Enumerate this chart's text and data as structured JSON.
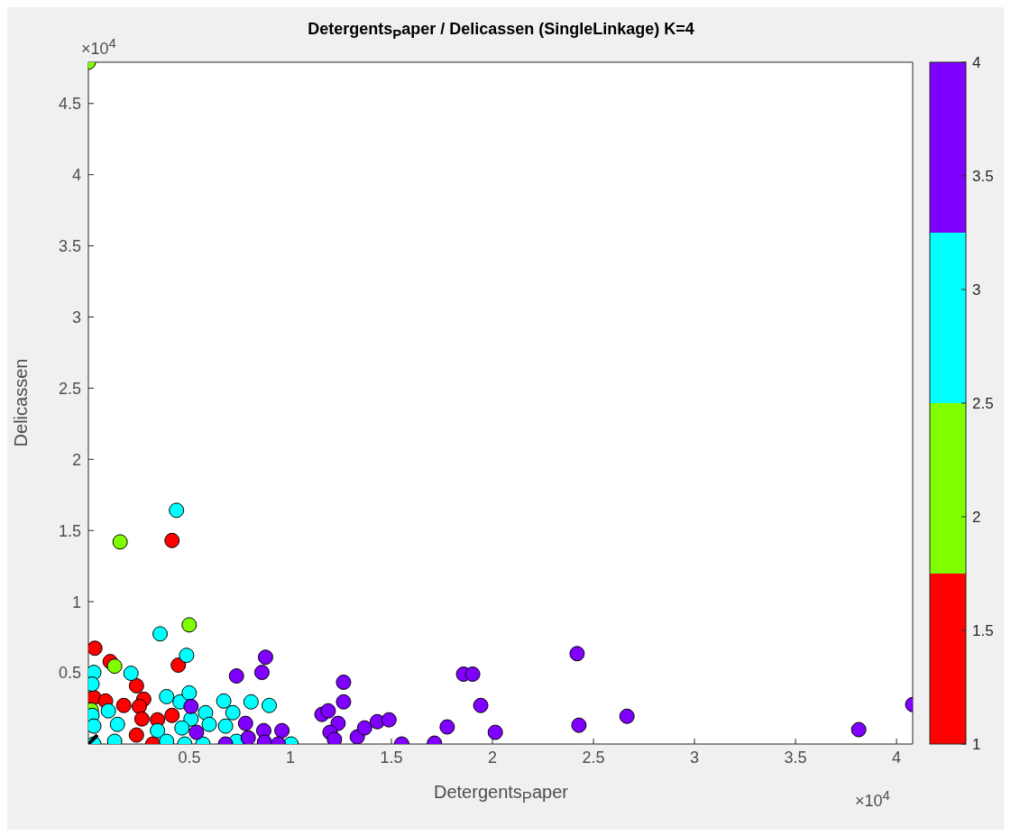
{
  "chart_data": {
    "type": "scatter",
    "title": "Detergents$_{P}$aper / Delicassen (SingleLinkage) K=4",
    "xlabel": "Detergents$_{P}$aper",
    "ylabel": "Delicassen",
    "annotations": [
      "×10$^{4}$",
      "×10$^{4}$"
    ],
    "xlim": [
      0,
      4.08
    ],
    "ylim": [
      0,
      4.79
    ],
    "xticks": [
      0.5,
      1,
      1.5,
      2,
      2.5,
      3,
      3.5,
      4
    ],
    "yticks": [
      0.5,
      1,
      1.5,
      2,
      2.5,
      3,
      3.5,
      4,
      4.5
    ],
    "clim": [
      1,
      4
    ],
    "cticks": [
      1,
      1.5,
      2,
      2.5,
      3,
      3.5,
      4
    ],
    "marker": "circle",
    "series": [
      {
        "color": "#ff0000",
        "x": [
          0.414,
          0.032,
          0.445,
          0.108,
          0.238,
          0.027,
          0.085,
          0.175,
          0.274,
          0.252,
          0.265,
          0.342,
          0.414,
          0.238,
          0.319
        ],
        "values": [
          1.43,
          0.673,
          0.554,
          0.579,
          0.409,
          0.327,
          0.302,
          0.271,
          0.315,
          0.264,
          0.176,
          0.17,
          0.201,
          0.063,
          0
        ]
      },
      {
        "color": "#80ff00",
        "x": [
          0,
          0.157,
          0.499,
          0.13,
          0.014
        ],
        "values": [
          4.79,
          1.42,
          0.837,
          0.547,
          0.239
        ]
      },
      {
        "color": "#00ffff",
        "x": [
          0.436,
          0.355,
          0.486,
          0.211,
          0.027,
          0.018,
          0.387,
          0.454,
          0.499,
          0.67,
          0.805,
          0.895,
          0.099,
          0.018,
          0.508,
          0.58,
          0.715,
          0.144,
          0.027,
          0.342,
          0.463,
          0.598,
          0.679,
          0.13,
          0.387,
          0.477,
          0.567,
          1.003,
          0.733,
          0.027
        ],
        "values": [
          1.642,
          0.774,
          0.623,
          0.497,
          0.503,
          0.421,
          0.333,
          0.296,
          0.359,
          0.302,
          0.296,
          0.271,
          0.233,
          0.201,
          0.176,
          0.22,
          0.22,
          0.138,
          0.126,
          0.094,
          0.113,
          0.138,
          0.126,
          0.019,
          0.019,
          0,
          0,
          0,
          0.019,
          0
        ]
      },
      {
        "color": "#8000ff",
        "x": [
          0.877,
          0.859,
          0.733,
          1.263,
          1.263,
          1.156,
          1.187,
          1.236,
          1.196,
          1.218,
          1.331,
          1.367,
          1.43,
          1.488,
          1.551,
          1.713,
          1.776,
          1.857,
          1.902,
          1.942,
          2.014,
          2.419,
          2.428,
          2.666,
          3.813,
          4.08,
          0.508,
          0.778,
          0.868,
          0.958,
          0.679,
          0.791,
          0.535,
          0.872,
          0.94
        ],
        "values": [
          0.61,
          0.503,
          0.478,
          0.434,
          0.296,
          0.208,
          0.233,
          0.145,
          0.082,
          0.032,
          0.05,
          0.113,
          0.157,
          0.17,
          0,
          0.006,
          0.12,
          0.491,
          0.491,
          0.271,
          0.082,
          0.635,
          0.132,
          0.195,
          0.101,
          0.277,
          0.264,
          0.145,
          0.094,
          0.094,
          0,
          0.044,
          0.082,
          0.013,
          0
        ]
      },
      {
        "color": "#000000",
        "marker": "cross",
        "x": [
          0
        ],
        "values": [
          0
        ]
      }
    ]
  }
}
